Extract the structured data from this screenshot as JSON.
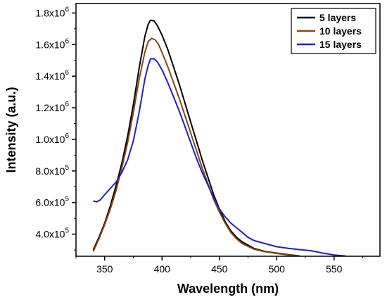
{
  "chart_data": {
    "type": "line",
    "xlabel": "Wavelength (nm)",
    "ylabel": "Intensity (a.u.)",
    "xlim": [
      325,
      590
    ],
    "ylim": [
      260000,
      1860000
    ],
    "x_ticks": [
      {
        "v": 350,
        "label": "350"
      },
      {
        "v": 400,
        "label": "400"
      },
      {
        "v": 450,
        "label": "450"
      },
      {
        "v": 500,
        "label": "500"
      },
      {
        "v": 550,
        "label": "550"
      }
    ],
    "y_ticks": [
      {
        "v": 400000,
        "mant": "4.0x10",
        "exp": "5"
      },
      {
        "v": 600000,
        "mant": "6.0x10",
        "exp": "5"
      },
      {
        "v": 800000,
        "mant": "8.0x10",
        "exp": "5"
      },
      {
        "v": 1000000,
        "mant": "1.0x10",
        "exp": "6"
      },
      {
        "v": 1200000,
        "mant": "1.2x10",
        "exp": "6"
      },
      {
        "v": 1400000,
        "mant": "1.4x10",
        "exp": "6"
      },
      {
        "v": 1600000,
        "mant": "1.6x10",
        "exp": "6"
      },
      {
        "v": 1800000,
        "mant": "1.8x10",
        "exp": "6"
      }
    ],
    "legend_position": "top-right",
    "series": [
      {
        "name": "5 layers",
        "color": "#000000",
        "points": [
          [
            340,
            300000
          ],
          [
            345,
            380000
          ],
          [
            350,
            470000
          ],
          [
            355,
            580000
          ],
          [
            360,
            710000
          ],
          [
            365,
            850000
          ],
          [
            370,
            1020000
          ],
          [
            375,
            1220000
          ],
          [
            380,
            1450000
          ],
          [
            385,
            1650000
          ],
          [
            388,
            1730000
          ],
          [
            390,
            1755000
          ],
          [
            393,
            1750000
          ],
          [
            396,
            1720000
          ],
          [
            400,
            1660000
          ],
          [
            405,
            1570000
          ],
          [
            410,
            1460000
          ],
          [
            415,
            1350000
          ],
          [
            420,
            1230000
          ],
          [
            425,
            1110000
          ],
          [
            430,
            990000
          ],
          [
            435,
            870000
          ],
          [
            440,
            760000
          ],
          [
            445,
            650000
          ],
          [
            450,
            560000
          ],
          [
            455,
            480000
          ],
          [
            460,
            420000
          ],
          [
            465,
            380000
          ],
          [
            470,
            350000
          ],
          [
            480,
            310000
          ],
          [
            490,
            290000
          ],
          [
            500,
            280000
          ],
          [
            510,
            270000
          ],
          [
            520,
            262000
          ]
        ]
      },
      {
        "name": "10 layers",
        "color": "#8B4513",
        "points": [
          [
            340,
            290000
          ],
          [
            345,
            370000
          ],
          [
            350,
            460000
          ],
          [
            355,
            560000
          ],
          [
            360,
            680000
          ],
          [
            365,
            820000
          ],
          [
            370,
            980000
          ],
          [
            375,
            1170000
          ],
          [
            380,
            1380000
          ],
          [
            385,
            1550000
          ],
          [
            388,
            1620000
          ],
          [
            391,
            1640000
          ],
          [
            394,
            1630000
          ],
          [
            397,
            1600000
          ],
          [
            400,
            1550000
          ],
          [
            405,
            1460000
          ],
          [
            410,
            1360000
          ],
          [
            415,
            1260000
          ],
          [
            420,
            1150000
          ],
          [
            425,
            1040000
          ],
          [
            430,
            930000
          ],
          [
            435,
            820000
          ],
          [
            440,
            720000
          ],
          [
            445,
            620000
          ],
          [
            450,
            540000
          ],
          [
            455,
            470000
          ],
          [
            460,
            410000
          ],
          [
            465,
            370000
          ],
          [
            470,
            340000
          ],
          [
            480,
            305000
          ],
          [
            490,
            288000
          ],
          [
            500,
            278000
          ],
          [
            510,
            268000
          ],
          [
            520,
            260000
          ]
        ]
      },
      {
        "name": "15 layers",
        "color": "#2020c8",
        "points": [
          [
            340,
            610000
          ],
          [
            343,
            605000
          ],
          [
            346,
            615000
          ],
          [
            350,
            650000
          ],
          [
            355,
            690000
          ],
          [
            360,
            730000
          ],
          [
            365,
            790000
          ],
          [
            370,
            870000
          ],
          [
            375,
            990000
          ],
          [
            380,
            1170000
          ],
          [
            385,
            1380000
          ],
          [
            388,
            1470000
          ],
          [
            390,
            1510000
          ],
          [
            393,
            1510000
          ],
          [
            396,
            1490000
          ],
          [
            400,
            1440000
          ],
          [
            405,
            1360000
          ],
          [
            410,
            1270000
          ],
          [
            415,
            1180000
          ],
          [
            420,
            1080000
          ],
          [
            425,
            980000
          ],
          [
            430,
            880000
          ],
          [
            435,
            790000
          ],
          [
            440,
            710000
          ],
          [
            445,
            630000
          ],
          [
            450,
            560000
          ],
          [
            455,
            510000
          ],
          [
            460,
            470000
          ],
          [
            465,
            440000
          ],
          [
            470,
            410000
          ],
          [
            475,
            380000
          ],
          [
            480,
            360000
          ],
          [
            490,
            340000
          ],
          [
            500,
            320000
          ],
          [
            510,
            310000
          ],
          [
            520,
            302000
          ],
          [
            530,
            295000
          ],
          [
            540,
            280000
          ],
          [
            550,
            268000
          ],
          [
            560,
            262000
          ]
        ]
      }
    ]
  }
}
